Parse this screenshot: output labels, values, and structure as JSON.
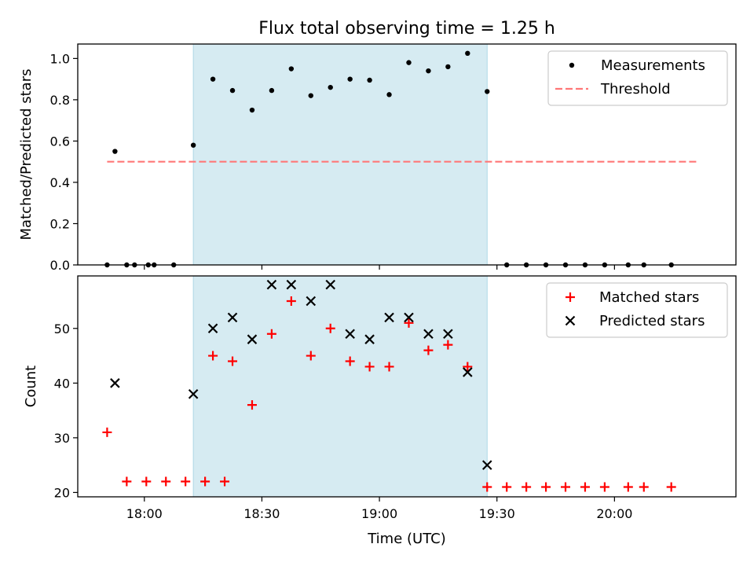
{
  "chart_data": {
    "type": "scatter",
    "title": "Flux total observing time = 1.25 h",
    "xlabel": "Time (UTC)",
    "xlim_min": [
      1063,
      1231
    ],
    "x_ticks": [
      {
        "min": 1080,
        "label": "18:00"
      },
      {
        "min": 1110,
        "label": "18:30"
      },
      {
        "min": 1140,
        "label": "19:00"
      },
      {
        "min": 1170,
        "label": "19:30"
      },
      {
        "min": 1200,
        "label": "20:00"
      }
    ],
    "highlight_span_min": [
      1092.5,
      1167.5
    ],
    "panels": [
      {
        "name": "ratio",
        "ylabel": "Matched/Predicted stars",
        "ylim": [
          0,
          1.07
        ],
        "yticks": [
          0.0,
          0.2,
          0.4,
          0.6,
          0.8,
          1.0
        ],
        "ytick_labels": [
          "0.0",
          "0.2",
          "0.4",
          "0.6",
          "0.8",
          "1.0"
        ],
        "series": [
          {
            "name": "Measurements",
            "style": "dot",
            "color": "#000000",
            "points": [
              [
                1070.5,
                0
              ],
              [
                1072.5,
                0.55
              ],
              [
                1077.5,
                0
              ],
              [
                1082.5,
                0
              ],
              [
                1087.5,
                0
              ],
              [
                1092.5,
                0.58
              ],
              [
                1097.5,
                0.9
              ],
              [
                1102.5,
                0.845
              ],
              [
                1107.5,
                0.75
              ],
              [
                1112.5,
                0.845
              ],
              [
                1117.5,
                0.95
              ],
              [
                1122.5,
                0.82
              ],
              [
                1127.5,
                0.86
              ],
              [
                1132.5,
                0.9
              ],
              [
                1137.5,
                0.895
              ],
              [
                1142.5,
                0.825
              ],
              [
                1147.5,
                0.98
              ],
              [
                1152.5,
                0.94
              ],
              [
                1157.5,
                0.96
              ],
              [
                1162.5,
                1.025
              ],
              [
                1167.5,
                0.84
              ],
              [
                1172.5,
                0
              ],
              [
                1177.5,
                0
              ],
              [
                1182.5,
                0
              ],
              [
                1187.5,
                0
              ],
              [
                1192.5,
                0
              ],
              [
                1197.5,
                0
              ],
              [
                1203.5,
                0
              ],
              [
                1207.5,
                0
              ],
              [
                1214.5,
                0
              ]
            ]
          },
          {
            "name": "Threshold",
            "style": "dashed-line",
            "color": "#ff7777",
            "points": [
              [
                1070.5,
                0.5
              ],
              [
                1221.5,
                0.5
              ]
            ]
          }
        ],
        "extra_zero_points": [
          [
            1075.5,
            0
          ],
          [
            1081.0,
            0
          ]
        ]
      },
      {
        "name": "counts",
        "ylabel": "Count",
        "ylim": [
          19.2,
          59.6
        ],
        "yticks": [
          20,
          30,
          40,
          50
        ],
        "ytick_labels": [
          "20",
          "30",
          "40",
          "50"
        ],
        "series": [
          {
            "name": "Matched stars",
            "style": "plus",
            "color": "#ff0000",
            "points": [
              [
                1070.5,
                31
              ],
              [
                1075.5,
                22
              ],
              [
                1080.5,
                22
              ],
              [
                1085.5,
                22
              ],
              [
                1090.5,
                22
              ],
              [
                1095.5,
                22
              ],
              [
                1100.5,
                22
              ],
              [
                1097.5,
                45
              ],
              [
                1102.5,
                44
              ],
              [
                1107.5,
                36
              ],
              [
                1112.5,
                49
              ],
              [
                1117.5,
                55
              ],
              [
                1122.5,
                45
              ],
              [
                1127.5,
                50
              ],
              [
                1132.5,
                44
              ],
              [
                1137.5,
                43
              ],
              [
                1142.5,
                43
              ],
              [
                1147.5,
                51
              ],
              [
                1152.5,
                46
              ],
              [
                1157.5,
                47
              ],
              [
                1162.5,
                43
              ],
              [
                1167.5,
                21
              ],
              [
                1172.5,
                21
              ],
              [
                1177.5,
                21
              ],
              [
                1182.5,
                21
              ],
              [
                1187.5,
                21
              ],
              [
                1192.5,
                21
              ],
              [
                1197.5,
                21
              ],
              [
                1203.5,
                21
              ],
              [
                1207.5,
                21
              ],
              [
                1214.5,
                21
              ]
            ]
          },
          {
            "name": "Predicted stars",
            "style": "x",
            "color": "#000000",
            "points": [
              [
                1072.5,
                40
              ],
              [
                1092.5,
                38
              ],
              [
                1097.5,
                50
              ],
              [
                1102.5,
                52
              ],
              [
                1107.5,
                48
              ],
              [
                1112.5,
                58
              ],
              [
                1117.5,
                58
              ],
              [
                1122.5,
                55
              ],
              [
                1127.5,
                58
              ],
              [
                1132.5,
                49
              ],
              [
                1137.5,
                48
              ],
              [
                1142.5,
                52
              ],
              [
                1147.5,
                52
              ],
              [
                1152.5,
                49
              ],
              [
                1157.5,
                49
              ],
              [
                1162.5,
                42
              ],
              [
                1167.5,
                25
              ]
            ]
          }
        ]
      }
    ],
    "legends": [
      {
        "panel": "ratio",
        "placement": "top-right",
        "entries": [
          "Measurements",
          "Threshold"
        ]
      },
      {
        "panel": "counts",
        "placement": "top-right",
        "entries": [
          "Matched stars",
          "Predicted stars"
        ]
      }
    ],
    "colors": {
      "span": "#add8e6",
      "axis": "#000000"
    }
  }
}
